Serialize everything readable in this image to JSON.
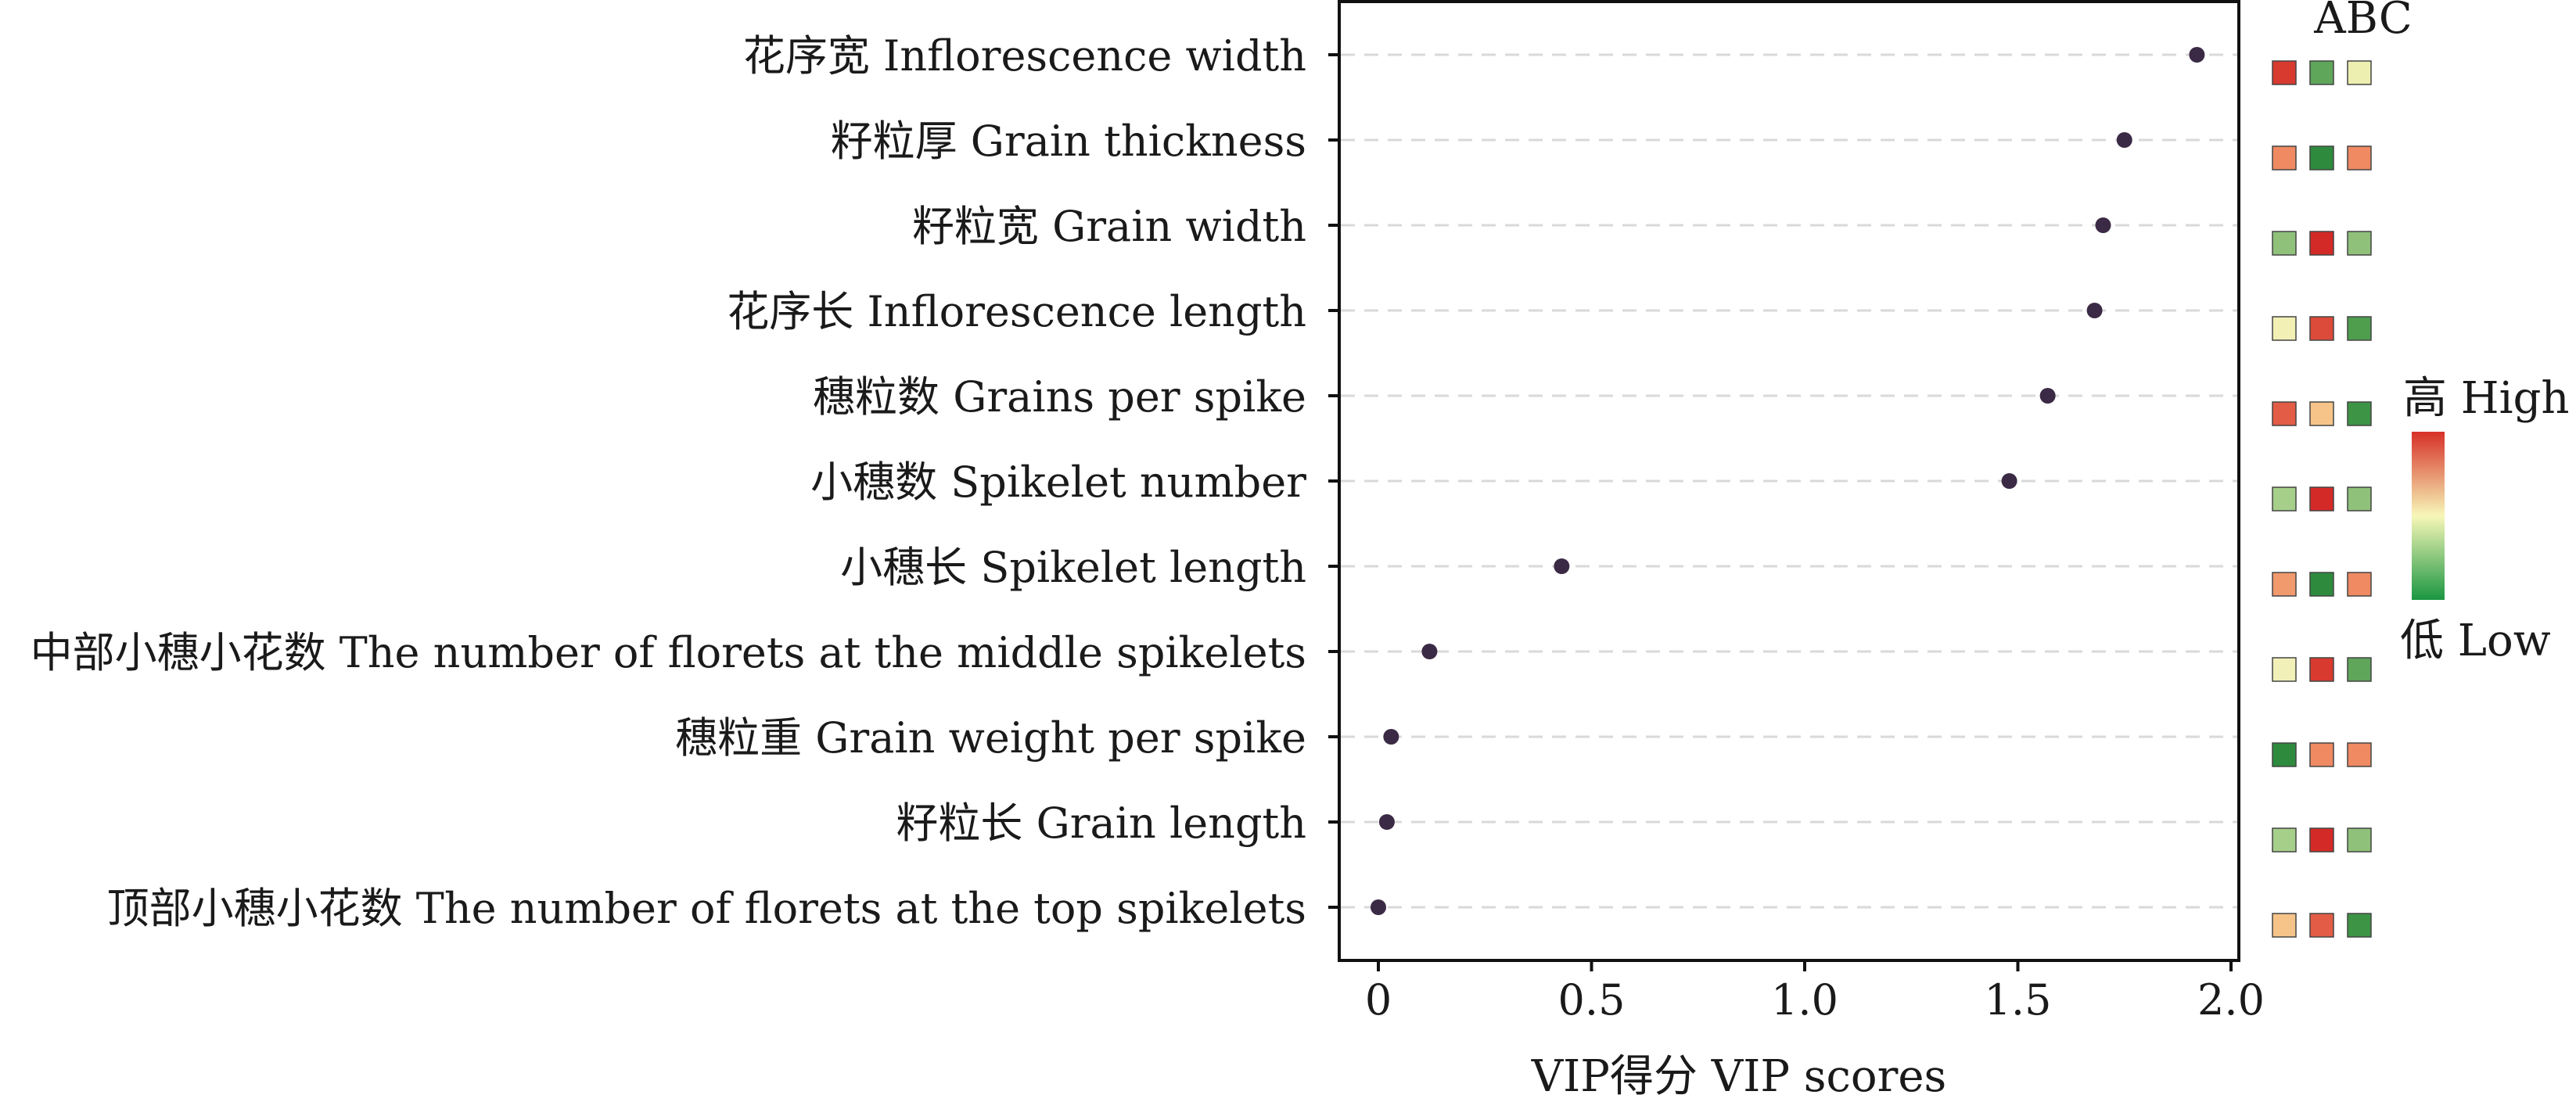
{
  "chart_data": {
    "type": "scatter",
    "title": "",
    "xlabel": "VIP得分 VIP scores",
    "ylabel": "",
    "xlim": [
      -0.1,
      2.05
    ],
    "xticks": [
      0,
      0.5,
      1.0,
      1.5,
      2.0
    ],
    "xtick_labels": [
      "0",
      "0.5",
      "1.0",
      "1.5",
      "2.0"
    ],
    "grid": "horizontal dashed",
    "point_color": "#3b2a45",
    "categories": [
      "花序宽 Inflorescence width",
      "籽粒厚 Grain thickness",
      "籽粒宽 Grain width",
      "花序长 Inflorescence length",
      "穗粒数 Grains per spike",
      "小穗数 Spikelet number",
      "小穗长 Spikelet length",
      "中部小穗小花数 The number of florets at the middle spikelets",
      "穗粒重 Grain weight per spike",
      "籽粒长 Grain length",
      "顶部小穗小花数 The number of florets at the top  spikelets"
    ],
    "values": [
      1.92,
      1.75,
      1.7,
      1.68,
      1.57,
      1.48,
      0.43,
      0.12,
      0.03,
      0.02,
      0.0
    ],
    "heatmap": {
      "columns": [
        "A",
        "B",
        "C"
      ],
      "column_header": "ABC",
      "colors": [
        [
          "#d83a30",
          "#5fa55a",
          "#ecefb0"
        ],
        [
          "#ef8a62",
          "#2e8b3e",
          "#ef8a62"
        ],
        [
          "#8fc17a",
          "#d42a27",
          "#8fc17a"
        ],
        [
          "#f3f0b6",
          "#dc4a3a",
          "#4e9e4e"
        ],
        [
          "#e35c46",
          "#f6c489",
          "#3d9445"
        ],
        [
          "#a6cf8a",
          "#d42a27",
          "#8fc17a"
        ],
        [
          "#f09a6e",
          "#2e8b3e",
          "#ef8a62"
        ],
        [
          "#f1f0b8",
          "#d83a30",
          "#5fa55a"
        ],
        [
          "#2e8b3e",
          "#ef8a62",
          "#ef8a62"
        ],
        [
          "#a6cf8a",
          "#d42a27",
          "#8fc17a"
        ],
        [
          "#f6c489",
          "#e35c46",
          "#3d9445"
        ]
      ]
    },
    "legend": {
      "high_label": "高 High",
      "low_label": "低 Low",
      "gradient": [
        "#d73027",
        "#f7f7b8",
        "#1a9641"
      ]
    }
  }
}
